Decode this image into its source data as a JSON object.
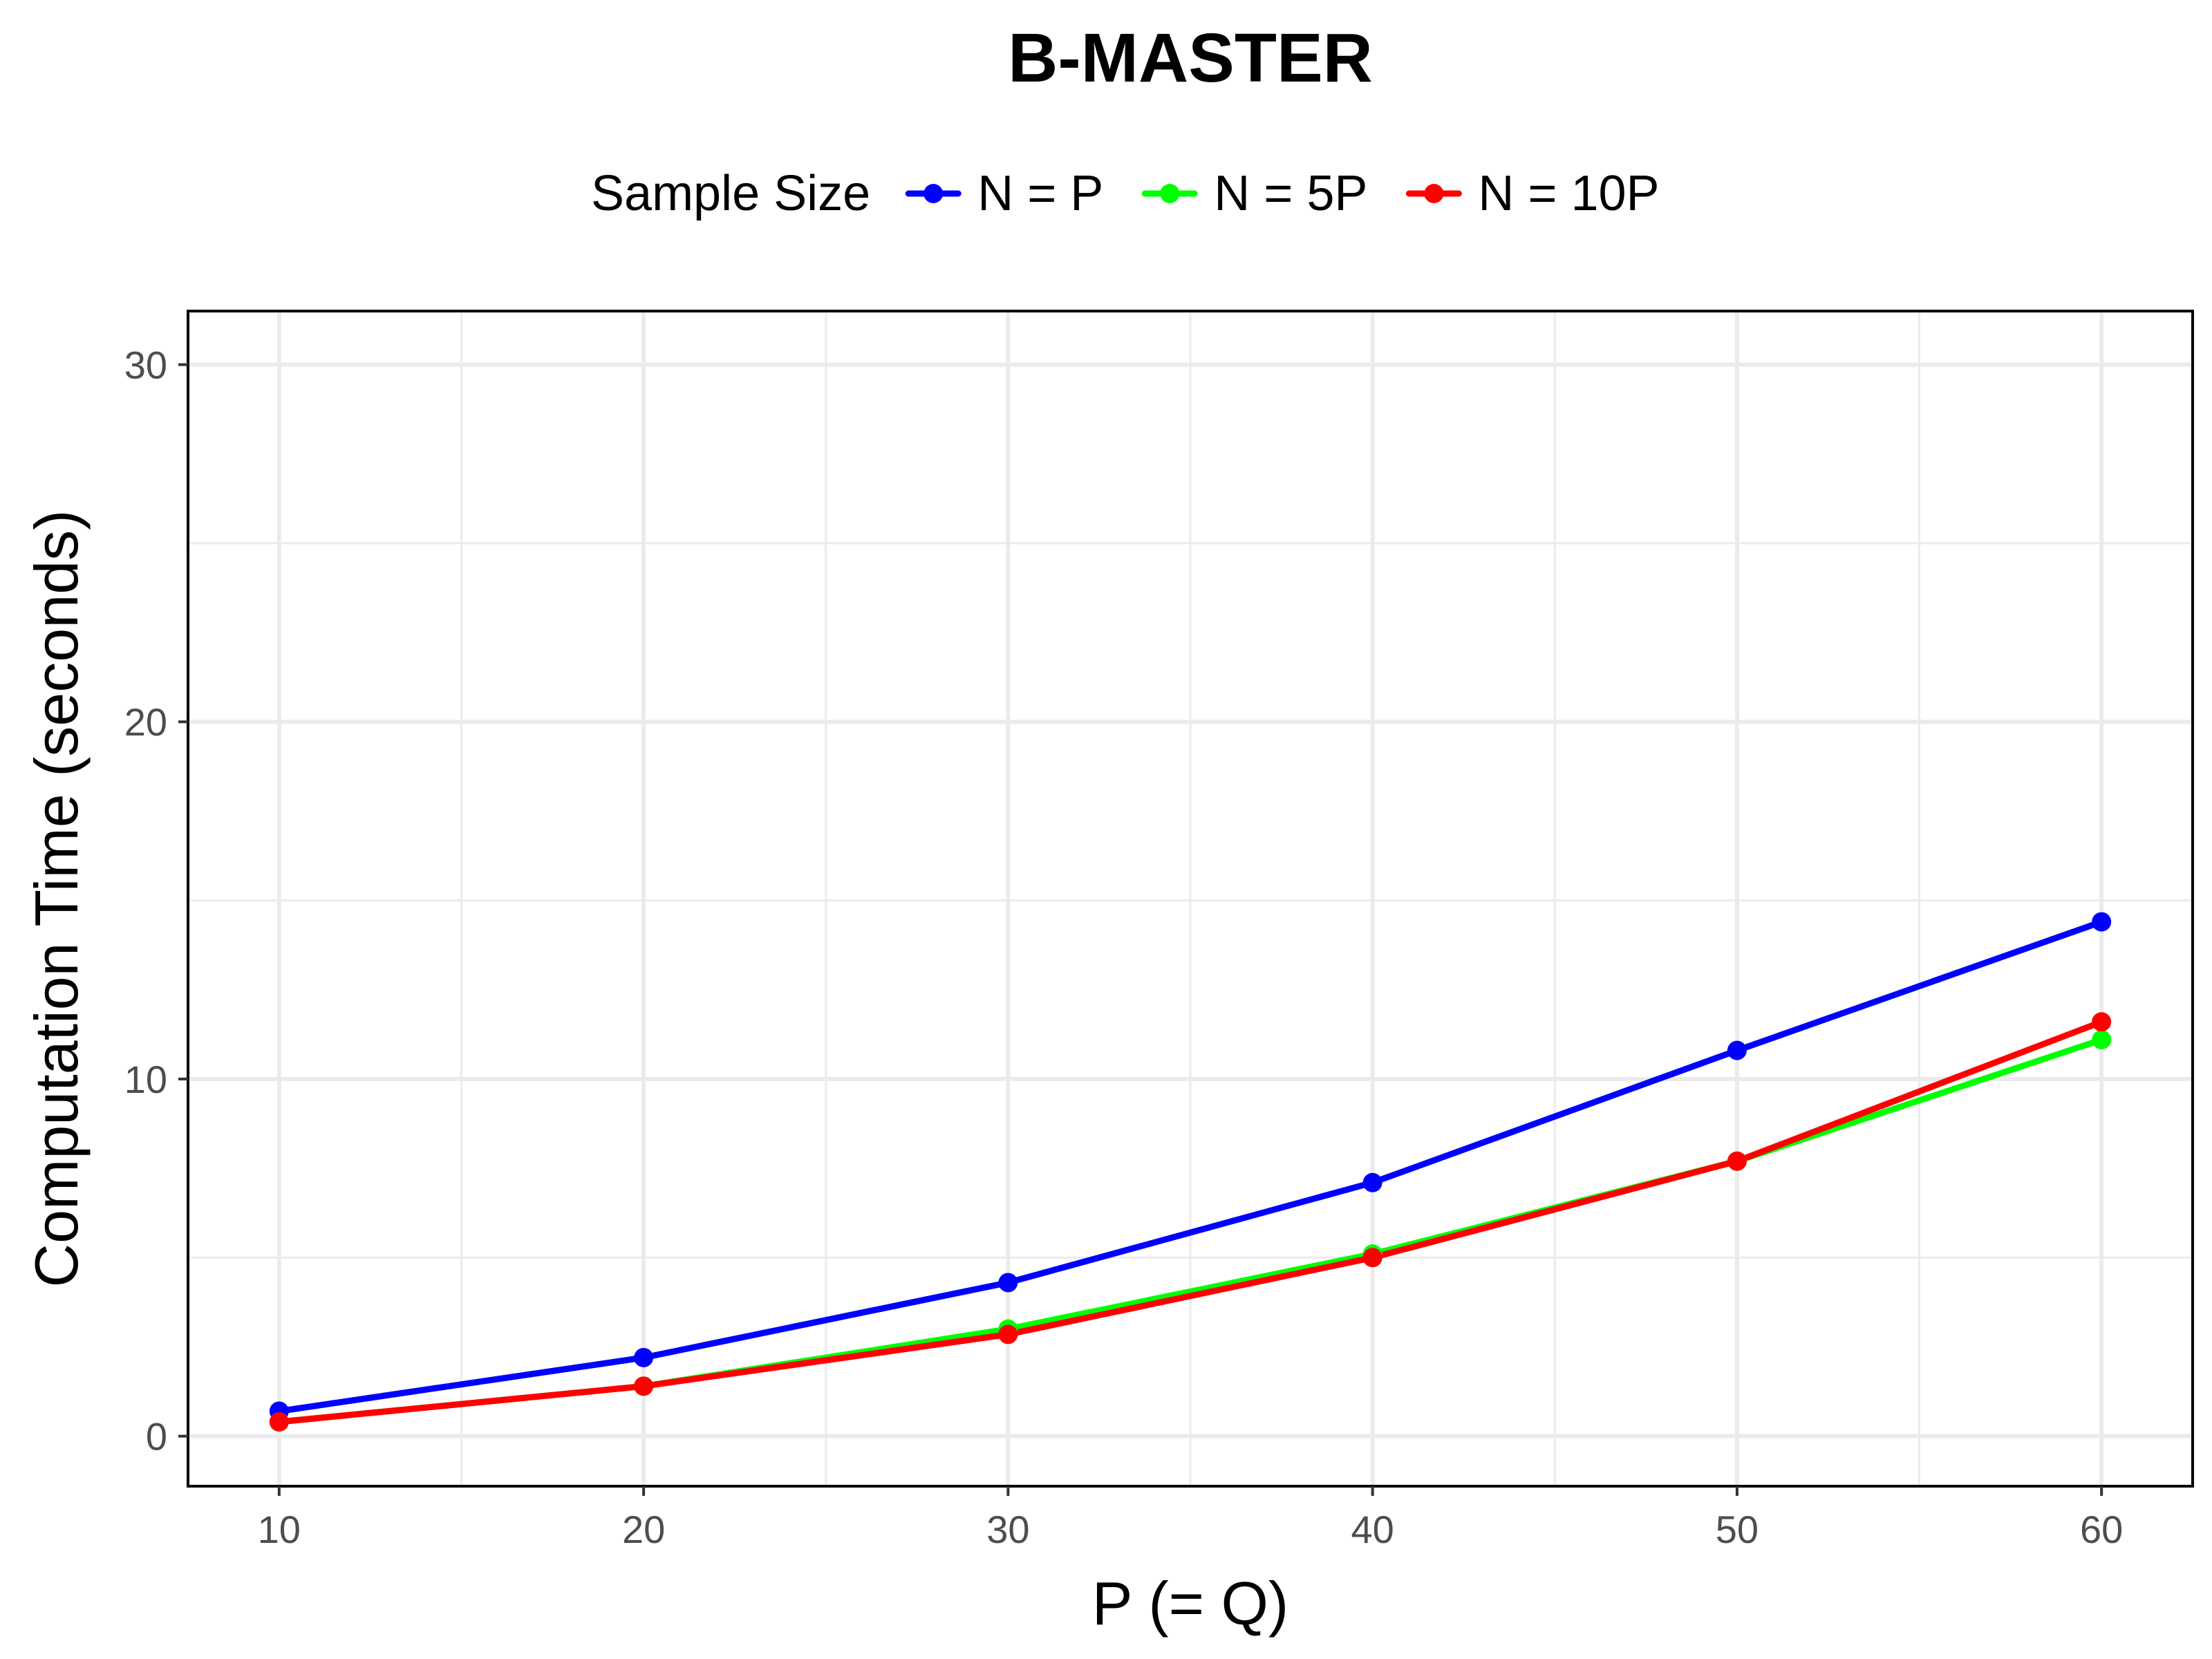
{
  "chart_data": {
    "type": "line",
    "title": "B-MASTER",
    "xlabel": "P (= Q)",
    "ylabel": "Computation Time (seconds)",
    "x": [
      10,
      20,
      30,
      40,
      50,
      60
    ],
    "x_ticks": [
      "10",
      "20",
      "30",
      "40",
      "50",
      "60"
    ],
    "y_ticks": [
      "0",
      "10",
      "20",
      "30"
    ],
    "xlim": [
      7.5,
      62.5
    ],
    "ylim": [
      -1.4,
      31.5
    ],
    "grid": true,
    "legend": {
      "title": "Sample Size",
      "position": "top"
    },
    "series": [
      {
        "name": "N = P",
        "color": "#0000ff",
        "values": [
          0.7,
          2.2,
          4.3,
          7.1,
          10.8,
          14.4
        ]
      },
      {
        "name": "N = 5P",
        "color": "#00ff00",
        "values": [
          0.4,
          1.4,
          3.0,
          5.1,
          7.7,
          11.1
        ]
      },
      {
        "name": "N = 10P",
        "color": "#ff0000",
        "values": [
          0.4,
          1.4,
          2.85,
          5.0,
          7.7,
          11.6
        ]
      }
    ]
  }
}
